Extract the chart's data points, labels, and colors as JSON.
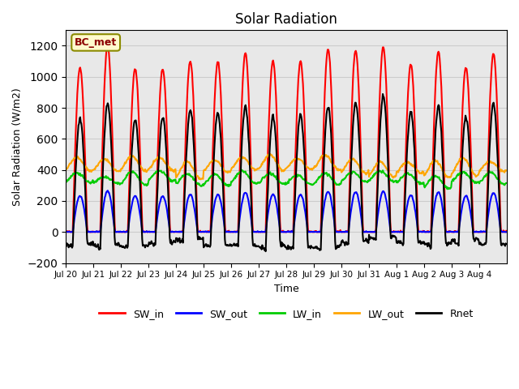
{
  "title": "Solar Radiation",
  "ylabel": "Solar Radiation (W/m2)",
  "xlabel": "Time",
  "ylim": [
    -200,
    1300
  ],
  "yticks": [
    -200,
    0,
    200,
    400,
    600,
    800,
    1000,
    1200
  ],
  "station_label": "BC_met",
  "x_tick_labels": [
    "Jul 20",
    "Jul 21",
    "Jul 22",
    "Jul 23",
    "Jul 24",
    "Jul 25",
    "Jul 26",
    "Jul 27",
    "Jul 28",
    "Jul 29",
    "Jul 30",
    "Jul 31",
    "Aug 1",
    "Aug 2",
    "Aug 3",
    "Aug 4"
  ],
  "colors": {
    "SW_in": "#FF0000",
    "SW_out": "#0000FF",
    "LW_in": "#00CC00",
    "LW_out": "#FFA500",
    "Rnet": "#000000"
  },
  "line_widths": {
    "SW_in": 1.5,
    "SW_out": 1.5,
    "LW_in": 1.5,
    "LW_out": 1.5,
    "Rnet": 1.5
  },
  "n_days": 16,
  "pts_per_day": 48,
  "sw_in_peaks": [
    1060,
    1200,
    1050,
    1050,
    1100,
    1100,
    1150,
    1100,
    1100,
    1180,
    1170,
    1190,
    1080,
    1160,
    1060,
    1150
  ],
  "background_color": "#ffffff",
  "grid_color": "#cccccc",
  "axes_facecolor": "#e8e8e8"
}
